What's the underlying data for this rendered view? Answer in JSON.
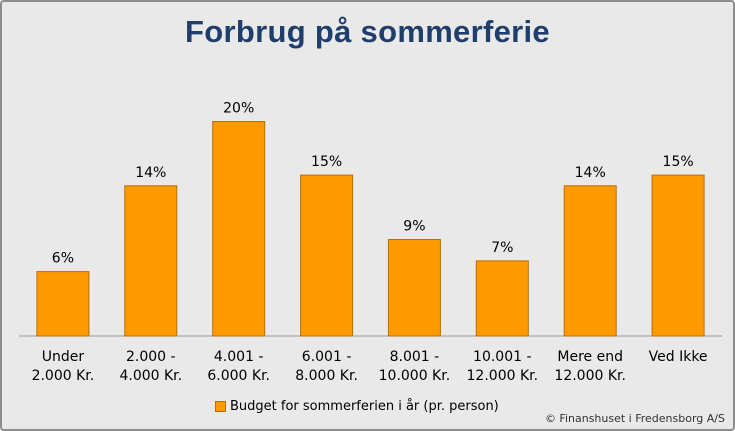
{
  "chart_data": {
    "type": "bar",
    "title": "Forbrug på sommerferie",
    "categories": [
      [
        "Under",
        "2.000 Kr."
      ],
      [
        "2.000 -",
        "4.000 Kr."
      ],
      [
        "4.001 -",
        "6.000 Kr."
      ],
      [
        "6.001 -",
        "8.000 Kr."
      ],
      [
        "8.001 -",
        "10.000 Kr."
      ],
      [
        "10.001 -",
        "12.000 Kr."
      ],
      [
        "Mere end",
        "12.000 Kr."
      ],
      [
        "Ved Ikke",
        ""
      ]
    ],
    "series": [
      {
        "name": "Budget for sommerferien i år (pr. person)",
        "values": [
          6,
          14,
          20,
          15,
          9,
          7,
          14,
          15
        ],
        "labels": [
          "6%",
          "14%",
          "20%",
          "15%",
          "9%",
          "7%",
          "14%",
          "15%"
        ]
      }
    ],
    "ylim": [
      0,
      22
    ],
    "legend_position": "bottom",
    "grid": false,
    "bar_color": "#ff9900",
    "bar_edge_color": "#b96e00",
    "background_color": "#e9e9e9",
    "title_color": "#1f3e6b"
  },
  "footer": {
    "credit": "© Finanshuset i Fredensborg A/S"
  }
}
